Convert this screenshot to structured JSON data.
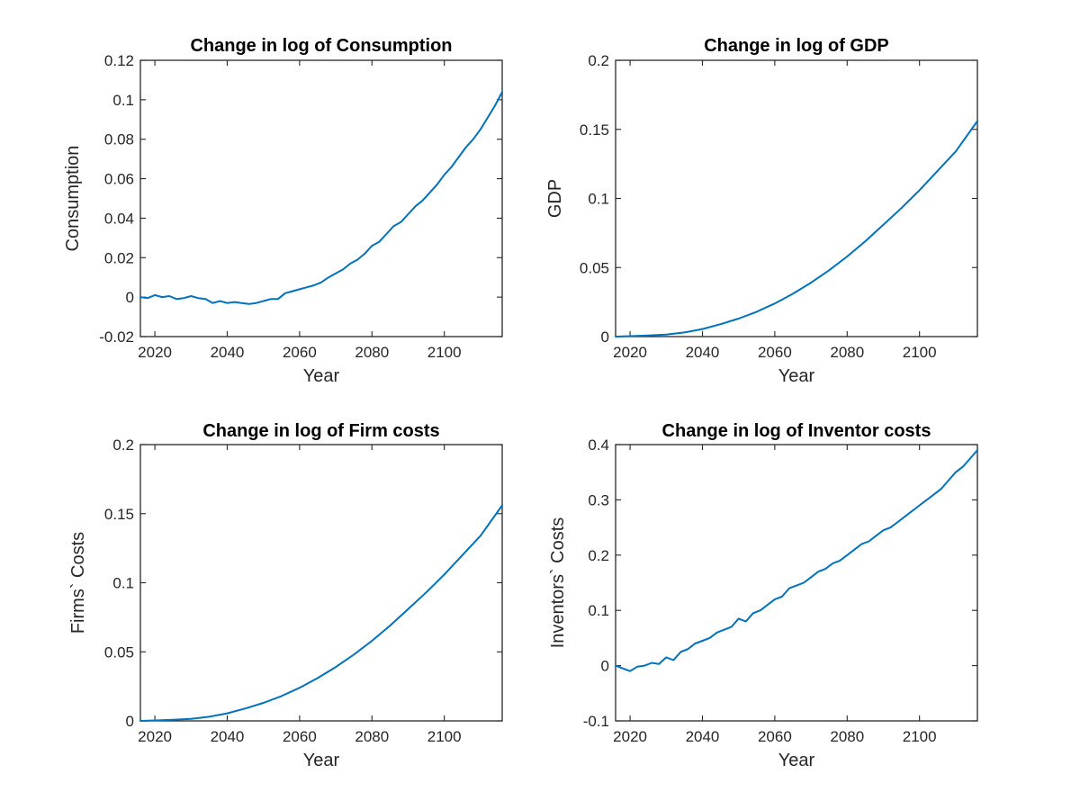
{
  "chart_data": [
    {
      "type": "line",
      "title": "Change in log of Consumption",
      "xlabel": "Year",
      "ylabel": "Consumption",
      "xlim": [
        2016,
        2116
      ],
      "ylim": [
        -0.02,
        0.12
      ],
      "xticks": [
        "2020",
        "2040",
        "2060",
        "2080",
        "2100"
      ],
      "yticks": [
        "-0.02",
        "0",
        "0.02",
        "0.04",
        "0.06",
        "0.08",
        "0.1",
        "0.12"
      ],
      "color": "#0072BD",
      "series": [
        {
          "x": [
            2016,
            2018,
            2020,
            2022,
            2024,
            2026,
            2028,
            2030,
            2032,
            2034,
            2036,
            2038,
            2040,
            2042,
            2044,
            2046,
            2048,
            2050,
            2052,
            2054,
            2056,
            2058,
            2060,
            2062,
            2064,
            2066,
            2068,
            2070,
            2072,
            2074,
            2076,
            2078,
            2080,
            2082,
            2084,
            2086,
            2088,
            2090,
            2092,
            2094,
            2096,
            2098,
            2100,
            2102,
            2104,
            2106,
            2108,
            2110,
            2112,
            2114,
            2116
          ],
          "values": [
            0.0,
            -0.0005,
            0.001,
            0.0,
            0.0005,
            -0.001,
            -0.0005,
            0.0005,
            -0.0005,
            -0.001,
            -0.003,
            -0.002,
            -0.003,
            -0.0025,
            -0.003,
            -0.0035,
            -0.003,
            -0.002,
            -0.001,
            -0.001,
            0.002,
            0.003,
            0.004,
            0.005,
            0.006,
            0.0075,
            0.01,
            0.012,
            0.014,
            0.017,
            0.019,
            0.022,
            0.026,
            0.028,
            0.032,
            0.036,
            0.038,
            0.042,
            0.046,
            0.049,
            0.053,
            0.057,
            0.062,
            0.066,
            0.071,
            0.076,
            0.08,
            0.085,
            0.091,
            0.097,
            0.104
          ]
        }
      ]
    },
    {
      "type": "line",
      "title": "Change in log of GDP",
      "xlabel": "Year",
      "ylabel": "GDP",
      "xlim": [
        2016,
        2116
      ],
      "ylim": [
        0,
        0.2
      ],
      "xticks": [
        "2020",
        "2040",
        "2060",
        "2080",
        "2100"
      ],
      "yticks": [
        "0",
        "0.05",
        "0.1",
        "0.15",
        "0.2"
      ],
      "color": "#0072BD",
      "series": [
        {
          "x": [
            2016,
            2020,
            2025,
            2030,
            2035,
            2040,
            2045,
            2050,
            2055,
            2060,
            2065,
            2070,
            2075,
            2080,
            2085,
            2090,
            2095,
            2100,
            2105,
            2110,
            2116
          ],
          "values": [
            0.0,
            0.0003,
            0.0008,
            0.0015,
            0.003,
            0.0055,
            0.009,
            0.013,
            0.018,
            0.024,
            0.031,
            0.039,
            0.048,
            0.058,
            0.069,
            0.081,
            0.093,
            0.106,
            0.12,
            0.134,
            0.156
          ]
        }
      ]
    },
    {
      "type": "line",
      "title": "Change in log of Firm costs",
      "xlabel": "Year",
      "ylabel": "Firms` Costs",
      "xlim": [
        2016,
        2116
      ],
      "ylim": [
        0,
        0.2
      ],
      "xticks": [
        "2020",
        "2040",
        "2060",
        "2080",
        "2100"
      ],
      "yticks": [
        "0",
        "0.05",
        "0.1",
        "0.15",
        "0.2"
      ],
      "color": "#0072BD",
      "series": [
        {
          "x": [
            2016,
            2020,
            2025,
            2030,
            2035,
            2040,
            2045,
            2050,
            2055,
            2060,
            2065,
            2070,
            2075,
            2080,
            2085,
            2090,
            2095,
            2100,
            2105,
            2110,
            2116
          ],
          "values": [
            0.0,
            0.0003,
            0.0008,
            0.0015,
            0.003,
            0.0055,
            0.009,
            0.013,
            0.018,
            0.024,
            0.031,
            0.039,
            0.048,
            0.058,
            0.069,
            0.081,
            0.093,
            0.106,
            0.12,
            0.134,
            0.156
          ]
        }
      ]
    },
    {
      "type": "line",
      "title": "Change in log of Inventor costs",
      "xlabel": "Year",
      "ylabel": "Inventors` Costs",
      "xlim": [
        2016,
        2116
      ],
      "ylim": [
        -0.1,
        0.4
      ],
      "xticks": [
        "2020",
        "2040",
        "2060",
        "2080",
        "2100"
      ],
      "yticks": [
        "-0.1",
        "0",
        "0.1",
        "0.2",
        "0.3",
        "0.4"
      ],
      "color": "#0072BD",
      "series": [
        {
          "x": [
            2016,
            2018,
            2020,
            2022,
            2024,
            2026,
            2028,
            2030,
            2032,
            2034,
            2036,
            2038,
            2040,
            2042,
            2044,
            2046,
            2048,
            2050,
            2052,
            2054,
            2056,
            2058,
            2060,
            2062,
            2064,
            2066,
            2068,
            2070,
            2072,
            2074,
            2076,
            2078,
            2080,
            2082,
            2084,
            2086,
            2088,
            2090,
            2092,
            2094,
            2096,
            2098,
            2100,
            2102,
            2104,
            2106,
            2108,
            2110,
            2112,
            2114,
            2116
          ],
          "values": [
            0.0,
            -0.005,
            -0.01,
            -0.002,
            0.0,
            0.005,
            0.003,
            0.015,
            0.01,
            0.025,
            0.03,
            0.04,
            0.045,
            0.05,
            0.06,
            0.065,
            0.07,
            0.085,
            0.08,
            0.095,
            0.1,
            0.11,
            0.12,
            0.125,
            0.14,
            0.145,
            0.15,
            0.16,
            0.17,
            0.175,
            0.185,
            0.19,
            0.2,
            0.21,
            0.22,
            0.225,
            0.235,
            0.245,
            0.25,
            0.26,
            0.27,
            0.28,
            0.29,
            0.3,
            0.31,
            0.32,
            0.335,
            0.35,
            0.36,
            0.375,
            0.39
          ]
        }
      ]
    }
  ]
}
